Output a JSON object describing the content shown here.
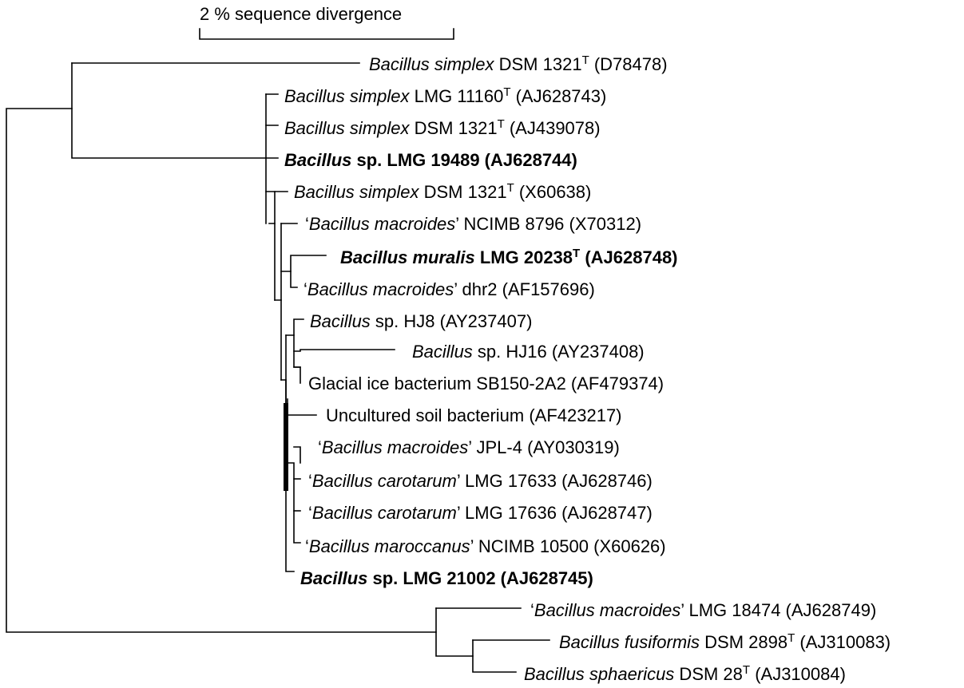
{
  "scale_bar": {
    "label": "2 % sequence divergence"
  },
  "taxa": [
    {
      "id": "t1",
      "parts": [
        {
          "t": "Bacillus simplex",
          "i": true
        },
        {
          "t": " DSM 1321"
        },
        {
          "t": "T",
          "sup": true
        },
        {
          "t": " (D78478)"
        }
      ]
    },
    {
      "id": "t2",
      "parts": [
        {
          "t": "Bacillus simplex",
          "i": true
        },
        {
          "t": " LMG 11160"
        },
        {
          "t": "T",
          "sup": true
        },
        {
          "t": " (AJ628743)"
        }
      ]
    },
    {
      "id": "t3",
      "parts": [
        {
          "t": "Bacillus simplex",
          "i": true
        },
        {
          "t": " DSM 1321"
        },
        {
          "t": "T",
          "sup": true
        },
        {
          "t": " (AJ439078)"
        }
      ]
    },
    {
      "id": "t4",
      "bold": true,
      "parts": [
        {
          "t": "Bacillus",
          "i": true
        },
        {
          "t": " sp. LMG 19489 (AJ628744)"
        }
      ]
    },
    {
      "id": "t5",
      "parts": [
        {
          "t": "Bacillus simplex",
          "i": true
        },
        {
          "t": " DSM 1321"
        },
        {
          "t": "T",
          "sup": true
        },
        {
          "t": " (X60638)"
        }
      ]
    },
    {
      "id": "t6",
      "parts": [
        {
          "t": "‘"
        },
        {
          "t": "Bacillus macroides",
          "i": true
        },
        {
          "t": "’ NCIMB 8796 (X70312)"
        }
      ]
    },
    {
      "id": "t7",
      "bold": true,
      "parts": [
        {
          "t": "Bacillus muralis",
          "i": true
        },
        {
          "t": " LMG 20238"
        },
        {
          "t": "T",
          "sup": true
        },
        {
          "t": " (AJ628748)"
        }
      ]
    },
    {
      "id": "t8",
      "parts": [
        {
          "t": "‘"
        },
        {
          "t": "Bacillus macroides",
          "i": true
        },
        {
          "t": "’ dhr2 (AF157696)"
        }
      ]
    },
    {
      "id": "t9",
      "parts": [
        {
          "t": "Bacillus",
          "i": true
        },
        {
          "t": " sp. HJ8 (AY237407)"
        }
      ]
    },
    {
      "id": "t10",
      "parts": [
        {
          "t": "Bacillus",
          "i": true
        },
        {
          "t": " sp. HJ16 (AY237408)"
        }
      ]
    },
    {
      "id": "t11",
      "parts": [
        {
          "t": "Glacial ice bacterium SB150-2A2 (AF479374)"
        }
      ]
    },
    {
      "id": "t12",
      "parts": [
        {
          "t": "Uncultured soil bacterium (AF423217)"
        }
      ]
    },
    {
      "id": "t13",
      "parts": [
        {
          "t": "‘"
        },
        {
          "t": "Bacillus macroides",
          "i": true
        },
        {
          "t": "’ JPL-4 (AY030319)"
        }
      ]
    },
    {
      "id": "t14",
      "parts": [
        {
          "t": "‘"
        },
        {
          "t": "Bacillus carotarum",
          "i": true
        },
        {
          "t": "’ LMG 17633 (AJ628746)"
        }
      ]
    },
    {
      "id": "t15",
      "parts": [
        {
          "t": "‘"
        },
        {
          "t": "Bacillus carotarum",
          "i": true
        },
        {
          "t": "’ LMG 17636 (AJ628747)"
        }
      ]
    },
    {
      "id": "t16",
      "parts": [
        {
          "t": "‘"
        },
        {
          "t": "Bacillus maroccanus",
          "i": true
        },
        {
          "t": "’ NCIMB 10500 (X60626)"
        }
      ]
    },
    {
      "id": "t17",
      "bold": true,
      "parts": [
        {
          "t": "Bacillus",
          "i": true
        },
        {
          "t": " sp. LMG 21002 (AJ628745)"
        }
      ]
    },
    {
      "id": "t18",
      "parts": [
        {
          "t": "‘"
        },
        {
          "t": "Bacillus macroides",
          "i": true
        },
        {
          "t": "’ LMG 18474 (AJ628749)"
        }
      ]
    },
    {
      "id": "t19",
      "parts": [
        {
          "t": "Bacillus fusiformis",
          "i": true
        },
        {
          "t": " DSM 2898"
        },
        {
          "t": "T",
          "sup": true
        },
        {
          "t": " (AJ310083)"
        }
      ]
    },
    {
      "id": "t20",
      "parts": [
        {
          "t": "Bacillus sphaericus",
          "i": true
        },
        {
          "t": " DSM 28"
        },
        {
          "t": "T",
          "sup": true
        },
        {
          "t": " (AJ310084)"
        }
      ]
    }
  ]
}
